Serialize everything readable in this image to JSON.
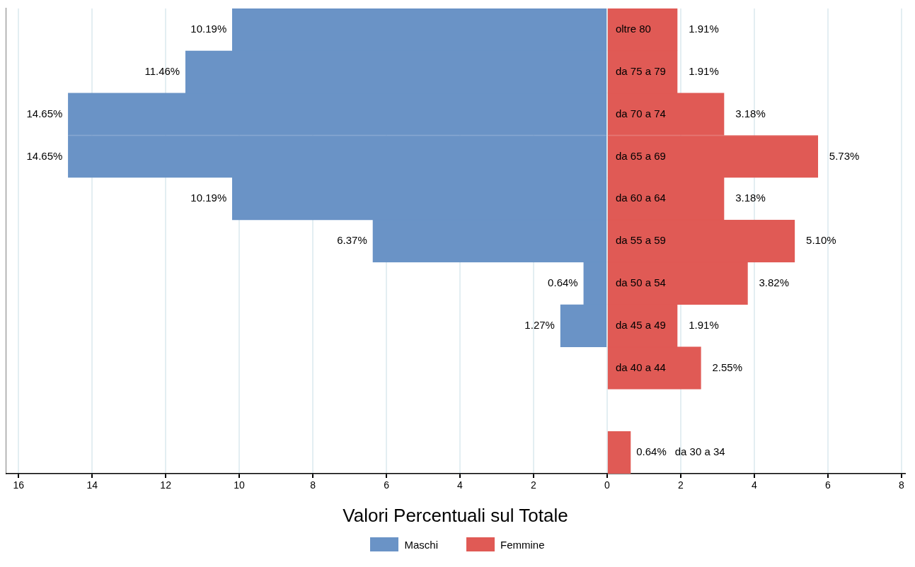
{
  "chart_data": {
    "type": "bar",
    "orientation": "horizontal",
    "xlabel": "Valori Percentuali sul Totale",
    "categories": [
      "oltre 80",
      "da 75 a 79",
      "da 70 a 74",
      "da 65 a 69",
      "da 60 a 64",
      "da 55 a 59",
      "da 50 a 54",
      "da 45 a 49",
      "da 40 a 44",
      null,
      "da 30 a 34"
    ],
    "series": [
      {
        "name": "Maschi",
        "color": "#6a93c6",
        "values": [
          10.19,
          11.46,
          14.65,
          14.65,
          10.19,
          6.37,
          0.64,
          1.27,
          null,
          null,
          null
        ],
        "base": [
          -10.19,
          -11.46,
          -14.65,
          -14.65,
          -10.19,
          -6.37,
          -0.64,
          -1.27,
          null,
          null,
          null
        ],
        "value_labels": [
          "10.19%",
          "11.46%",
          "14.65%",
          "14.65%",
          "10.19%",
          "6.37%",
          "0.64%",
          "1.27%",
          null,
          null,
          null
        ]
      },
      {
        "name": "Femmine",
        "color": "#e05a55",
        "values": [
          1.91,
          1.91,
          3.18,
          5.73,
          3.18,
          5.1,
          3.82,
          1.91,
          2.55,
          null,
          0.64
        ],
        "value_labels": [
          "1.91%",
          "1.91%",
          "3.18%",
          "5.73%",
          "3.18%",
          "5.10%",
          "3.82%",
          "1.91%",
          "2.55%",
          null,
          "0.64%"
        ]
      }
    ],
    "xlim": [
      -16.35,
      8.1
    ],
    "xticks": [
      {
        "value": -16,
        "label": "16"
      },
      {
        "value": -14,
        "label": "14"
      },
      {
        "value": -12,
        "label": "12"
      },
      {
        "value": -10,
        "label": "10"
      },
      {
        "value": -8,
        "label": "8"
      },
      {
        "value": -6,
        "label": "6"
      },
      {
        "value": -4,
        "label": "4"
      },
      {
        "value": -2,
        "label": "2"
      },
      0,
      2,
      4,
      6,
      8
    ],
    "grid": "x",
    "legend": "bottom"
  }
}
